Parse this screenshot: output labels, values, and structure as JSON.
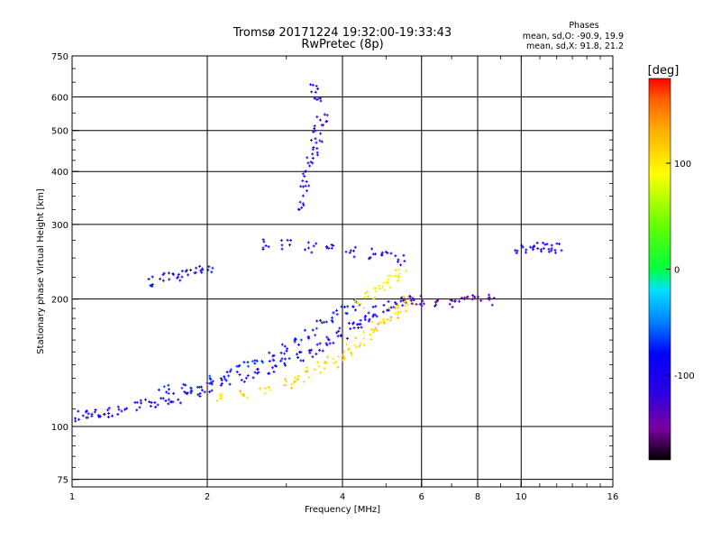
{
  "chart_data": {
    "type": "scatter",
    "title": "Tromsø 20171224 19:32:00-19:33:43",
    "subtitle": "RwPretec (8p)",
    "xlabel": "Frequency [MHz]",
    "ylabel": "Stationary phase Virtual Height [km]",
    "xscale": "log",
    "yscale": "log",
    "xlim": [
      1,
      16
    ],
    "ylim": [
      72,
      750
    ],
    "grid": true,
    "x_ticks": [
      "1",
      "2",
      "4",
      "6",
      "8",
      "10",
      "16"
    ],
    "x_tick_values": [
      1,
      2,
      4,
      6,
      8,
      10,
      16
    ],
    "y_ticks": [
      "75",
      "100",
      "200",
      "300",
      "400",
      "500",
      "600",
      "750"
    ],
    "y_tick_values": [
      75,
      100,
      200,
      300,
      400,
      500,
      600,
      750
    ],
    "stats": {
      "heading": "Phases",
      "line1": "mean, sd,O: -90.9, 19.9",
      "line2": "mean, sd,X:  91.8, 21.2"
    },
    "colorbar": {
      "label": "[deg]",
      "range": [
        -180,
        180
      ],
      "ticks": [
        "100",
        "0",
        "-100"
      ],
      "tick_values": [
        100,
        0,
        -100
      ],
      "stops": [
        {
          "v": -180,
          "color": "#000000"
        },
        {
          "v": -150,
          "color": "#7a00a0"
        },
        {
          "v": -120,
          "color": "#3200dc"
        },
        {
          "v": -80,
          "color": "#0000ff"
        },
        {
          "v": -50,
          "color": "#0080ff"
        },
        {
          "v": -20,
          "color": "#00e0ff"
        },
        {
          "v": 0,
          "color": "#00ff40"
        },
        {
          "v": 40,
          "color": "#60ff00"
        },
        {
          "v": 90,
          "color": "#ffff00"
        },
        {
          "v": 130,
          "color": "#ffb000"
        },
        {
          "v": 160,
          "color": "#ff6000"
        },
        {
          "v": 180,
          "color": "#ff0000"
        }
      ]
    },
    "series": [
      {
        "trace": "o-trace",
        "phase": -95,
        "points": [
          [
            1.0,
            104
          ],
          [
            1.05,
            106
          ],
          [
            1.1,
            107
          ],
          [
            1.15,
            108
          ],
          [
            1.2,
            108
          ],
          [
            1.3,
            110
          ],
          [
            1.4,
            112
          ],
          [
            1.5,
            113
          ],
          [
            1.6,
            115
          ],
          [
            1.7,
            117
          ],
          [
            1.8,
            119
          ],
          [
            1.9,
            121
          ],
          [
            2.0,
            124
          ],
          [
            2.2,
            127
          ],
          [
            2.4,
            131
          ],
          [
            2.6,
            134
          ],
          [
            2.8,
            137
          ],
          [
            3.0,
            141
          ],
          [
            3.2,
            146
          ],
          [
            3.4,
            150
          ],
          [
            3.6,
            155
          ],
          [
            3.8,
            160
          ],
          [
            4.0,
            166
          ],
          [
            4.2,
            171
          ],
          [
            4.4,
            176
          ],
          [
            4.6,
            182
          ],
          [
            4.8,
            187
          ],
          [
            5.0,
            192
          ],
          [
            5.3,
            196
          ],
          [
            5.6,
            199
          ]
        ]
      },
      {
        "trace": "o-trace-upper",
        "phase": -80,
        "points": [
          [
            1.6,
            122
          ],
          [
            1.8,
            125
          ],
          [
            2.0,
            129
          ],
          [
            2.2,
            133
          ],
          [
            2.4,
            138
          ],
          [
            2.6,
            143
          ],
          [
            2.8,
            147
          ],
          [
            3.0,
            152
          ],
          [
            3.2,
            158
          ],
          [
            3.4,
            166
          ],
          [
            3.6,
            174
          ],
          [
            3.8,
            182
          ],
          [
            4.0,
            188
          ],
          [
            4.3,
            194
          ]
        ]
      },
      {
        "trace": "x-trace",
        "phase": 110,
        "points": [
          [
            2.1,
            117
          ],
          [
            2.4,
            120
          ],
          [
            2.7,
            123
          ],
          [
            3.0,
            127
          ],
          [
            3.2,
            130
          ],
          [
            3.4,
            134
          ],
          [
            3.6,
            138
          ],
          [
            3.8,
            142
          ],
          [
            4.0,
            147
          ],
          [
            4.2,
            152
          ],
          [
            4.4,
            158
          ],
          [
            4.6,
            165
          ],
          [
            4.8,
            172
          ],
          [
            5.0,
            179
          ],
          [
            5.2,
            186
          ],
          [
            5.4,
            192
          ],
          [
            5.6,
            198
          ]
        ]
      },
      {
        "trace": "x-trace-upper",
        "phase": 90,
        "points": [
          [
            4.4,
            196
          ],
          [
            4.6,
            203
          ],
          [
            4.8,
            210
          ],
          [
            5.0,
            216
          ],
          [
            5.2,
            222
          ],
          [
            5.4,
            228
          ]
        ]
      },
      {
        "trace": "f-layer-column",
        "phase": -110,
        "points": [
          [
            3.2,
            330
          ],
          [
            3.3,
            360
          ],
          [
            3.35,
            390
          ],
          [
            3.4,
            420
          ],
          [
            3.45,
            450
          ],
          [
            3.5,
            480
          ],
          [
            3.55,
            510
          ],
          [
            3.6,
            540
          ],
          [
            3.5,
            600
          ],
          [
            3.45,
            630
          ]
        ]
      },
      {
        "trace": "spread-band",
        "phase": -105,
        "points": [
          [
            2.7,
            270
          ],
          [
            3.0,
            268
          ],
          [
            3.4,
            265
          ],
          [
            3.8,
            262
          ],
          [
            4.2,
            258
          ],
          [
            4.6,
            255
          ],
          [
            5.0,
            252
          ],
          [
            5.4,
            247
          ]
        ]
      },
      {
        "trace": "low-branch",
        "phase": -90,
        "points": [
          [
            1.5,
            220
          ],
          [
            1.6,
            225
          ],
          [
            1.7,
            228
          ],
          [
            1.8,
            230
          ],
          [
            1.9,
            234
          ],
          [
            2.0,
            237
          ]
        ]
      },
      {
        "trace": "band-200",
        "phase": -140,
        "points": [
          [
            5.6,
            198
          ],
          [
            6.0,
            198
          ],
          [
            6.5,
            197
          ],
          [
            7.0,
            197
          ],
          [
            7.5,
            198
          ],
          [
            8.0,
            198
          ],
          [
            8.6,
            199
          ]
        ]
      },
      {
        "trace": "high-freq",
        "phase": -95,
        "points": [
          [
            10.0,
            260
          ],
          [
            10.5,
            262
          ],
          [
            11.0,
            264
          ],
          [
            11.5,
            262
          ],
          [
            12.0,
            265
          ]
        ]
      }
    ]
  }
}
